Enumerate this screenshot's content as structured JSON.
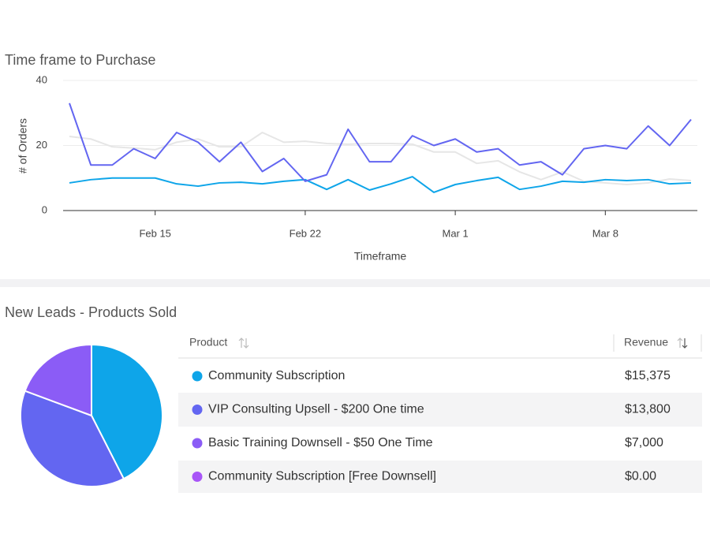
{
  "chart_data": [
    {
      "type": "line",
      "title": "Time frame to Purchase",
      "xlabel": "Timeframe",
      "ylabel": "# of Orders",
      "categories": [
        null,
        null,
        null,
        null,
        "Feb 15",
        null,
        null,
        null,
        null,
        null,
        null,
        "Feb 22",
        null,
        null,
        null,
        null,
        null,
        null,
        "Mar 1",
        null,
        null,
        null,
        null,
        null,
        null,
        "Mar 8",
        null,
        null,
        null,
        null
      ],
      "series": [
        {
          "color": "#e6e6e6",
          "values": [
            22.8,
            22,
            19.6,
            19.2,
            18.7,
            21,
            22,
            19.6,
            19.6,
            24,
            21,
            21.3,
            20.6,
            20.4,
            20.6,
            20.6,
            20.4,
            18,
            18,
            14.5,
            15.3,
            11.9,
            9.5,
            11.9,
            9,
            8.5,
            8,
            8.5,
            9.7,
            9.2
          ]
        },
        {
          "color": "#0ea5e9",
          "values": [
            8.5,
            9.5,
            10,
            10,
            10,
            8.2,
            7.5,
            8.5,
            8.7,
            8.2,
            9,
            9.5,
            6.5,
            9.5,
            6.3,
            8.2,
            10.4,
            5.6,
            8,
            9.2,
            10.2,
            6.5,
            7.5,
            9,
            8.7,
            9.5,
            9.2,
            9.5,
            8.2,
            8.5
          ]
        },
        {
          "color": "#6366f1",
          "values": [
            33,
            14,
            14,
            19,
            16,
            24,
            21,
            15,
            21,
            12,
            16,
            9,
            11,
            25,
            15,
            15,
            23,
            20,
            22,
            18,
            19,
            14,
            15,
            11,
            19,
            20,
            19,
            26,
            20,
            28
          ]
        }
      ],
      "ylim": [
        0,
        40
      ],
      "yticks": [
        0,
        20,
        40
      ],
      "grid": true
    },
    {
      "type": "pie",
      "title": "New Leads - Products Sold",
      "categories": [
        "Community Subscription",
        "VIP Consulting Upsell - $200 One time",
        "Basic Training Downsell - $50 One Time",
        "Community Subscription [Free Downsell]"
      ],
      "values": [
        15375,
        13800,
        7000,
        0
      ],
      "value_labels": [
        "$15,375",
        "$13,800",
        "$7,000",
        "$0.00"
      ],
      "colors": [
        "#0ea5e9",
        "#6366f1",
        "#8b5cf6",
        "#a855f7"
      ]
    }
  ],
  "table": {
    "columns": [
      "Product",
      "Revenue"
    ]
  }
}
